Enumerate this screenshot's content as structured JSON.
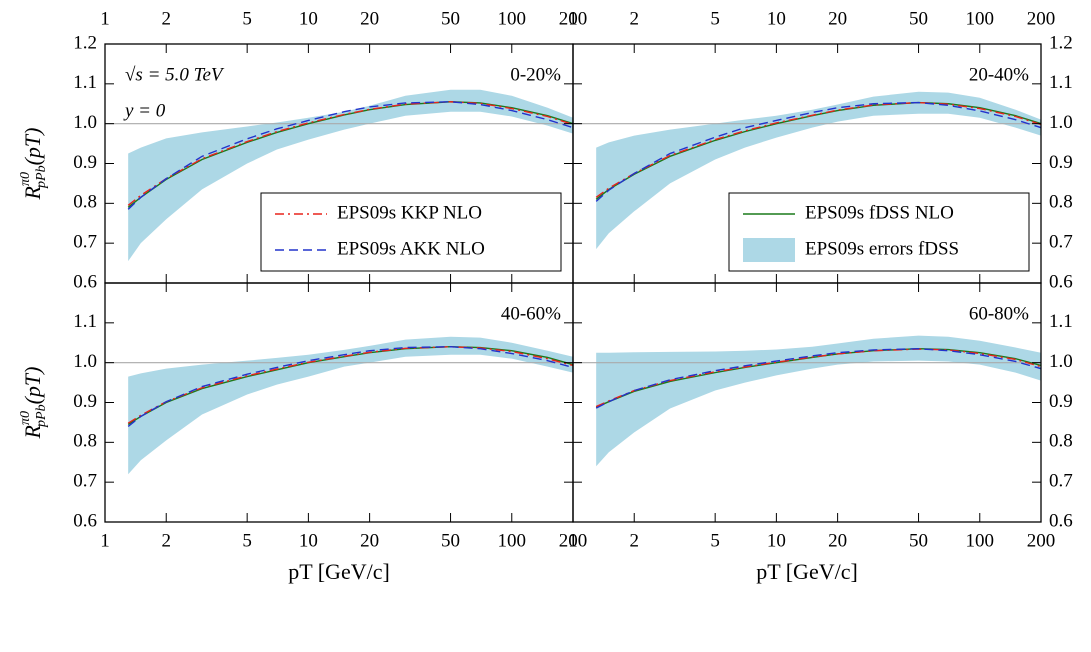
{
  "chart_data": [
    {
      "type": "line",
      "xscale": "log",
      "xlim": [
        1,
        200
      ],
      "ylim": [
        0.6,
        1.2
      ],
      "xticks": [
        1,
        2,
        5,
        10,
        20,
        50,
        100,
        200
      ],
      "yticks": [
        0.6,
        0.7,
        0.8,
        0.9,
        {
          "value": 1,
          "label": "1.0"
        },
        1.1,
        1.2
      ],
      "hline": 1,
      "label": "0-20%",
      "annotations": [
        "√s = 5.0 TeV",
        "y = 0"
      ],
      "y_label": {
        "main": "R",
        "sup": "π0",
        "sub": "pPb",
        "tail": "(pT)"
      },
      "legend_corner": "lower right",
      "x": [
        1.3,
        1.5,
        2,
        3,
        5,
        7,
        10,
        15,
        20,
        30,
        50,
        70,
        100,
        150,
        200
      ],
      "bands": [
        {
          "color": "#add8e6",
          "upper": [
            0.925,
            0.94,
            0.963,
            0.978,
            0.993,
            1.003,
            1.015,
            1.03,
            1.045,
            1.07,
            1.085,
            1.085,
            1.07,
            1.04,
            1.015
          ],
          "lower": [
            0.655,
            0.7,
            0.76,
            0.835,
            0.9,
            0.935,
            0.96,
            0.985,
            1.0,
            1.02,
            1.03,
            1.03,
            1.018,
            0.995,
            0.975
          ]
        }
      ],
      "series": [
        {
          "color": "#1a7a1a",
          "dash": "solid",
          "values": [
            0.79,
            0.815,
            0.86,
            0.91,
            0.953,
            0.978,
            1.0,
            1.022,
            1.035,
            1.048,
            1.055,
            1.052,
            1.04,
            1.02,
            1.0
          ]
        },
        {
          "name": "EPS09s KKP NLO",
          "color": "#e8231c",
          "dash": "dashdot",
          "values": [
            0.795,
            0.82,
            0.862,
            0.912,
            0.955,
            0.98,
            1.002,
            1.023,
            1.036,
            1.049,
            1.055,
            1.051,
            1.038,
            1.018,
            0.998
          ]
        },
        {
          "name": "EPS09s AKK NLO",
          "color": "#2233cc",
          "dash": "dashed",
          "values": [
            0.785,
            0.815,
            0.862,
            0.918,
            0.962,
            0.987,
            1.008,
            1.03,
            1.042,
            1.052,
            1.055,
            1.048,
            1.033,
            1.01,
            0.99
          ]
        }
      ]
    },
    {
      "type": "line",
      "xscale": "log",
      "xlim": [
        1,
        200
      ],
      "ylim": [
        0.6,
        1.2
      ],
      "xticks": [
        1,
        2,
        5,
        10,
        20,
        50,
        100,
        200
      ],
      "yticks": [
        0.6,
        0.7,
        0.8,
        0.9,
        {
          "value": 1,
          "label": "1.0"
        },
        1.1,
        1.2
      ],
      "hline": 1,
      "label": "20-40%",
      "legend_corner": "lower right",
      "x": [
        1.3,
        1.5,
        2,
        3,
        5,
        7,
        10,
        15,
        20,
        30,
        50,
        70,
        100,
        150,
        200
      ],
      "bands": [
        {
          "name": "EPS09s errors fDSS",
          "color": "#add8e6",
          "upper": [
            0.94,
            0.953,
            0.97,
            0.985,
            1.0,
            1.01,
            1.02,
            1.035,
            1.048,
            1.068,
            1.08,
            1.078,
            1.065,
            1.035,
            1.01
          ],
          "lower": [
            0.685,
            0.725,
            0.78,
            0.85,
            0.91,
            0.94,
            0.965,
            0.99,
            1.005,
            1.02,
            1.025,
            1.025,
            1.015,
            0.99,
            0.97
          ]
        }
      ],
      "series": [
        {
          "name": "EPS09s fDSS NLO",
          "color": "#1a7a1a",
          "dash": "solid",
          "values": [
            0.81,
            0.835,
            0.873,
            0.918,
            0.958,
            0.98,
            1.0,
            1.02,
            1.033,
            1.046,
            1.053,
            1.05,
            1.04,
            1.02,
            1.0
          ]
        },
        {
          "color": "#e8231c",
          "dash": "dashdot",
          "values": [
            0.815,
            0.838,
            0.875,
            0.92,
            0.96,
            0.982,
            1.002,
            1.021,
            1.034,
            1.047,
            1.053,
            1.049,
            1.038,
            1.018,
            0.998
          ]
        },
        {
          "color": "#2233cc",
          "dash": "dashed",
          "values": [
            0.805,
            0.833,
            0.875,
            0.925,
            0.966,
            0.99,
            1.008,
            1.028,
            1.04,
            1.05,
            1.053,
            1.046,
            1.032,
            1.01,
            0.99
          ]
        }
      ]
    },
    {
      "type": "line",
      "xscale": "log",
      "xlim": [
        1,
        200
      ],
      "ylim": [
        0.6,
        1.2
      ],
      "xticks": [
        1,
        2,
        5,
        10,
        20,
        50,
        100,
        200
      ],
      "yticks": [
        0.6,
        0.7,
        0.8,
        0.9,
        {
          "value": 1,
          "label": "1.0"
        },
        1.1
      ],
      "hline": 1,
      "label": "40-60%",
      "y_label": {
        "main": "R",
        "sup": "π0",
        "sub": "pPb",
        "tail": "(pT)"
      },
      "x_label": "pT [GeV/c]",
      "x": [
        1.3,
        1.5,
        2,
        3,
        5,
        7,
        10,
        15,
        20,
        30,
        50,
        70,
        100,
        150,
        200
      ],
      "bands": [
        {
          "color": "#add8e6",
          "upper": [
            0.965,
            0.973,
            0.985,
            0.995,
            1.005,
            1.012,
            1.02,
            1.032,
            1.042,
            1.058,
            1.065,
            1.063,
            1.05,
            1.03,
            1.015
          ],
          "lower": [
            0.72,
            0.755,
            0.805,
            0.87,
            0.92,
            0.945,
            0.965,
            0.99,
            1.0,
            1.015,
            1.02,
            1.02,
            1.01,
            0.99,
            0.975
          ]
        }
      ],
      "series": [
        {
          "color": "#1a7a1a",
          "dash": "solid",
          "values": [
            0.845,
            0.865,
            0.9,
            0.935,
            0.965,
            0.982,
            1.0,
            1.015,
            1.025,
            1.035,
            1.04,
            1.038,
            1.03,
            1.013,
            0.995
          ]
        },
        {
          "color": "#e8231c",
          "dash": "dashdot",
          "values": [
            0.848,
            0.868,
            0.902,
            0.937,
            0.967,
            0.984,
            1.001,
            1.016,
            1.026,
            1.036,
            1.04,
            1.037,
            1.028,
            1.01,
            0.993
          ]
        },
        {
          "color": "#2233cc",
          "dash": "dashed",
          "values": [
            0.84,
            0.865,
            0.902,
            0.94,
            0.971,
            0.988,
            1.005,
            1.02,
            1.03,
            1.038,
            1.04,
            1.035,
            1.023,
            1.005,
            0.988
          ]
        }
      ]
    },
    {
      "type": "line",
      "xscale": "log",
      "xlim": [
        1,
        200
      ],
      "ylim": [
        0.6,
        1.2
      ],
      "xticks": [
        1,
        2,
        5,
        10,
        20,
        50,
        100,
        200
      ],
      "yticks": [
        0.6,
        0.7,
        0.8,
        0.9,
        {
          "value": 1,
          "label": "1.0"
        },
        1.1
      ],
      "hline": 1,
      "label": "60-80%",
      "x_label": "pT [GeV/c]",
      "x": [
        1.3,
        1.5,
        2,
        3,
        5,
        7,
        10,
        15,
        20,
        30,
        50,
        70,
        100,
        150,
        200
      ],
      "bands": [
        {
          "color": "#add8e6",
          "upper": [
            1.025,
            1.025,
            1.026,
            1.027,
            1.028,
            1.03,
            1.033,
            1.04,
            1.048,
            1.06,
            1.068,
            1.065,
            1.055,
            1.038,
            1.025
          ],
          "lower": [
            0.74,
            0.775,
            0.825,
            0.885,
            0.93,
            0.95,
            0.968,
            0.985,
            0.995,
            1.003,
            1.005,
            1.003,
            0.995,
            0.975,
            0.955
          ]
        }
      ],
      "series": [
        {
          "color": "#1a7a1a",
          "dash": "solid",
          "values": [
            0.888,
            0.902,
            0.928,
            0.953,
            0.975,
            0.988,
            1.0,
            1.013,
            1.022,
            1.03,
            1.035,
            1.033,
            1.025,
            1.01,
            0.993
          ]
        },
        {
          "color": "#e8231c",
          "dash": "dashdot",
          "values": [
            0.89,
            0.904,
            0.93,
            0.955,
            0.977,
            0.989,
            1.001,
            1.014,
            1.022,
            1.03,
            1.034,
            1.032,
            1.023,
            1.008,
            0.99
          ]
        },
        {
          "color": "#2233cc",
          "dash": "dashed",
          "values": [
            0.886,
            0.902,
            0.93,
            0.957,
            0.98,
            0.992,
            1.004,
            1.017,
            1.025,
            1.032,
            1.035,
            1.03,
            1.02,
            1.003,
            0.985
          ]
        }
      ]
    }
  ]
}
